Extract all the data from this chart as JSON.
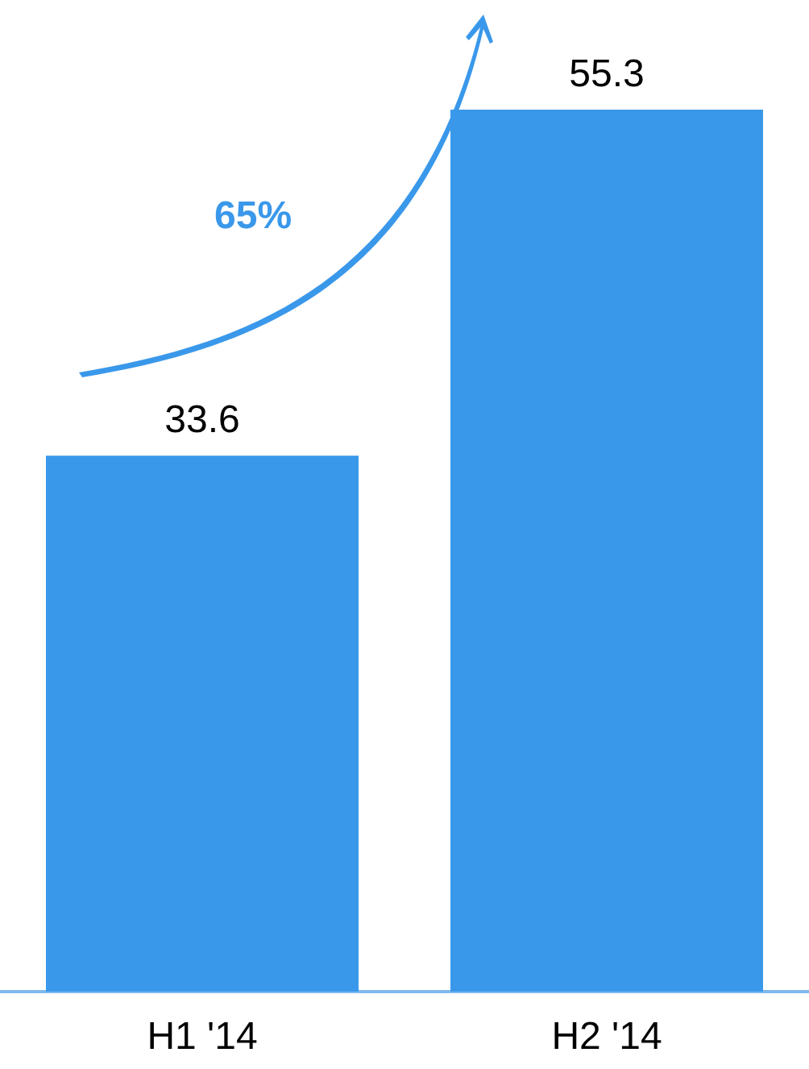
{
  "chart_data": {
    "type": "bar",
    "categories": [
      "H1 '14",
      "H2 '14"
    ],
    "values": [
      33.6,
      55.3
    ],
    "color": "#3a98ea",
    "data_labels": true,
    "annotations": [
      "65%"
    ]
  }
}
